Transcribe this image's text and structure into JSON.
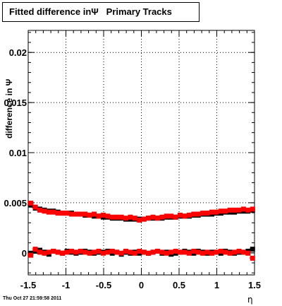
{
  "chart_data": {
    "type": "scatter",
    "title": "Fitted difference inΨ   Primary Tracks",
    "xlabel": "η",
    "ylabel": "difference in Ψ",
    "footer": "Thu Oct 27 21:59:58 2011",
    "xlim": [
      -1.5,
      1.5
    ],
    "ylim": [
      -0.0022,
      0.0222
    ],
    "x_ticks": [
      "-1.5",
      "-1",
      "-0.5",
      "0",
      "0.5",
      "1",
      "1.5"
    ],
    "y_ticks": [
      "0",
      "0.005",
      "0.01",
      "0.015",
      "0.02"
    ],
    "grid": true,
    "colors": {
      "series_red": "#ff0000",
      "series_black": "#000000"
    },
    "x": [
      -1.47,
      -1.41,
      -1.35,
      -1.29,
      -1.23,
      -1.17,
      -1.11,
      -1.05,
      -0.99,
      -0.93,
      -0.87,
      -0.81,
      -0.75,
      -0.69,
      -0.63,
      -0.57,
      -0.51,
      -0.45,
      -0.39,
      -0.33,
      -0.27,
      -0.21,
      -0.15,
      -0.09,
      -0.03,
      0.03,
      0.09,
      0.15,
      0.21,
      0.27,
      0.33,
      0.39,
      0.45,
      0.51,
      0.57,
      0.63,
      0.69,
      0.75,
      0.81,
      0.87,
      0.93,
      0.99,
      1.05,
      1.11,
      1.17,
      1.23,
      1.29,
      1.35,
      1.41,
      1.47
    ],
    "series": [
      {
        "values": [
          0.0048,
          0.0045,
          0.0044,
          0.0043,
          0.0042,
          0.0042,
          0.0041,
          0.004,
          0.004,
          0.004,
          0.0039,
          0.0039,
          0.0038,
          0.0038,
          0.0037,
          0.0037,
          0.0036,
          0.0036,
          0.0035,
          0.0035,
          0.0035,
          0.0034,
          0.0034,
          0.0034,
          0.0034,
          0.0034,
          0.0035,
          0.0035,
          0.0035,
          0.0035,
          0.0036,
          0.0036,
          0.0036,
          0.0037,
          0.0037,
          0.0037,
          0.0038,
          0.0038,
          0.0039,
          0.0039,
          0.0039,
          0.004,
          0.004,
          0.0041,
          0.0041,
          0.0041,
          0.0042,
          0.0042,
          0.0042,
          0.0043
        ]
      },
      {
        "values": [
          0.005,
          0.0046,
          0.0043,
          0.0042,
          0.0041,
          0.0041,
          0.004,
          0.004,
          0.004,
          0.0039,
          0.0039,
          0.0039,
          0.0039,
          0.0038,
          0.0039,
          0.0037,
          0.0038,
          0.0037,
          0.0036,
          0.0036,
          0.0036,
          0.0035,
          0.0036,
          0.0035,
          0.0033,
          0.0034,
          0.0035,
          0.0036,
          0.0035,
          0.0036,
          0.0037,
          0.0037,
          0.0036,
          0.0038,
          0.0037,
          0.0038,
          0.0039,
          0.0039,
          0.004,
          0.004,
          0.0041,
          0.0041,
          0.0042,
          0.0042,
          0.0043,
          0.0043,
          0.0043,
          0.0044,
          0.0043,
          0.0044
        ]
      },
      {
        "values": [
          0.0,
          0.0002,
          0.0003,
          0.0001,
          -0.0001,
          0.0002,
          0.0001,
          0.0,
          0.0002,
          0.0001,
          0.0,
          0.0001,
          0.0002,
          0.0001,
          0.0,
          0.0001,
          0.0001,
          0.0002,
          0.0,
          0.0001,
          -0.0001,
          0.0001,
          0.0,
          0.0001,
          0.0,
          0.0001,
          0.0,
          0.0001,
          0.0002,
          0.0,
          0.0001,
          -0.0001,
          0.0,
          0.0001,
          0.0002,
          0.0001,
          0.0,
          0.0002,
          0.0001,
          0.0,
          0.0001,
          0.0001,
          0.0,
          0.0002,
          0.0001,
          0.0,
          0.0001,
          0.0001,
          0.0002,
          0.0004
        ]
      },
      {
        "values": [
          -0.0002,
          0.0004,
          0.0001,
          0.0,
          0.0001,
          0.0002,
          0.0001,
          0.0,
          0.0001,
          0.0002,
          0.0001,
          0.0002,
          0.0001,
          0.0,
          0.0001,
          0.0002,
          0.0,
          0.0001,
          0.0002,
          0.0001,
          0.0,
          0.0002,
          0.0001,
          0.0,
          0.0002,
          0.0001,
          0.0,
          0.0001,
          0.0002,
          0.0001,
          0.0,
          0.0001,
          0.0002,
          0.0001,
          0.0001,
          0.0,
          0.0002,
          0.0001,
          0.0,
          0.0001,
          0.0,
          0.0001,
          0.0002,
          0.0001,
          0.0,
          0.0001,
          0.0002,
          0.0001,
          0.0,
          -0.0005
        ]
      }
    ]
  }
}
